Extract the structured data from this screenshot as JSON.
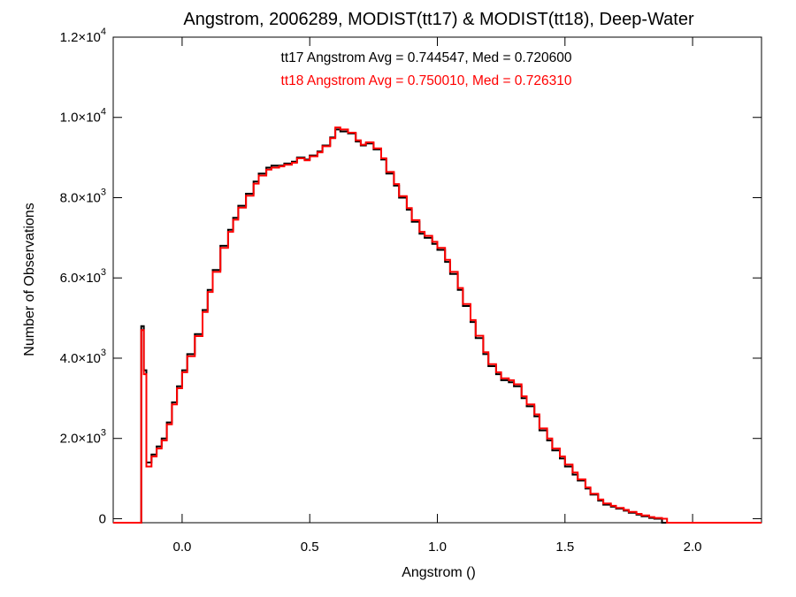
{
  "chart_data": {
    "type": "line",
    "title": "Angstrom, 2006289, MODIST(tt17) & MODIST(tt18), Deep-Water",
    "xlabel": "Angstrom ()",
    "ylabel": "Number of Observations",
    "xlim": [
      -0.27,
      2.27
    ],
    "ylim": [
      -100,
      12000
    ],
    "x_ticks": [
      {
        "value": 0.0,
        "label": "0.0"
      },
      {
        "value": 0.5,
        "label": "0.5"
      },
      {
        "value": 1.0,
        "label": "1.0"
      },
      {
        "value": 1.5,
        "label": "1.5"
      },
      {
        "value": 2.0,
        "label": "2.0"
      }
    ],
    "y_ticks": [
      {
        "value": 0,
        "mantissa": "0",
        "exp": ""
      },
      {
        "value": 2000,
        "mantissa": "2.0×10",
        "exp": "3"
      },
      {
        "value": 4000,
        "mantissa": "4.0×10",
        "exp": "3"
      },
      {
        "value": 6000,
        "mantissa": "6.0×10",
        "exp": "3"
      },
      {
        "value": 8000,
        "mantissa": "8.0×10",
        "exp": "3"
      },
      {
        "value": 10000,
        "mantissa": "1.0×10",
        "exp": "4"
      },
      {
        "value": 12000,
        "mantissa": "1.2×10",
        "exp": "4"
      }
    ],
    "grid": false,
    "step": "histogram",
    "annotations": [
      {
        "text": "tt17 Angstrom Avg = 0.744547, Med = 0.720600",
        "color": "#000000"
      },
      {
        "text": "tt18 Angstrom Avg = 0.750010, Med = 0.726310",
        "color": "#ff0000"
      }
    ],
    "series": [
      {
        "color": "#000000",
        "x": [
          -0.27,
          -0.16,
          -0.15,
          -0.14,
          -0.12,
          -0.1,
          -0.08,
          -0.06,
          -0.04,
          -0.02,
          0.0,
          0.02,
          0.05,
          0.08,
          0.1,
          0.12,
          0.15,
          0.18,
          0.2,
          0.22,
          0.25,
          0.28,
          0.3,
          0.33,
          0.35,
          0.38,
          0.4,
          0.43,
          0.45,
          0.48,
          0.5,
          0.53,
          0.55,
          0.58,
          0.6,
          0.62,
          0.65,
          0.68,
          0.7,
          0.72,
          0.75,
          0.78,
          0.8,
          0.83,
          0.85,
          0.88,
          0.9,
          0.93,
          0.95,
          0.98,
          1.0,
          1.03,
          1.05,
          1.08,
          1.1,
          1.13,
          1.15,
          1.18,
          1.2,
          1.23,
          1.25,
          1.28,
          1.3,
          1.33,
          1.35,
          1.38,
          1.4,
          1.43,
          1.45,
          1.48,
          1.5,
          1.53,
          1.55,
          1.58,
          1.6,
          1.63,
          1.65,
          1.68,
          1.7,
          1.73,
          1.75,
          1.78,
          1.8,
          1.83,
          1.85,
          1.88,
          1.9,
          1.95,
          2.0,
          2.05,
          2.1,
          2.13,
          2.15,
          2.27
        ],
        "y": [
          -100,
          4800,
          3700,
          1400,
          1600,
          1800,
          2000,
          2400,
          2900,
          3300,
          3700,
          4100,
          4600,
          5200,
          5700,
          6200,
          6800,
          7200,
          7500,
          7800,
          8100,
          8400,
          8600,
          8750,
          8800,
          8800,
          8850,
          8900,
          9000,
          8950,
          9050,
          9150,
          9300,
          9500,
          9700,
          9650,
          9600,
          9400,
          9300,
          9350,
          9200,
          8950,
          8600,
          8300,
          8000,
          7700,
          7400,
          7100,
          7000,
          6850,
          6700,
          6400,
          6100,
          5700,
          5300,
          4900,
          4500,
          4100,
          3800,
          3600,
          3450,
          3400,
          3300,
          3000,
          2800,
          2550,
          2200,
          1950,
          1700,
          1500,
          1300,
          1100,
          950,
          750,
          600,
          450,
          350,
          300,
          250,
          200,
          150,
          100,
          60,
          20,
          0,
          -100,
          -100,
          -100,
          -100,
          -100,
          -100,
          -100,
          -100,
          -100
        ]
      },
      {
        "color": "#ff0000",
        "x": [
          -0.27,
          -0.16,
          -0.15,
          -0.14,
          -0.12,
          -0.1,
          -0.08,
          -0.06,
          -0.04,
          -0.02,
          0.0,
          0.02,
          0.05,
          0.08,
          0.1,
          0.12,
          0.15,
          0.18,
          0.2,
          0.22,
          0.25,
          0.28,
          0.3,
          0.33,
          0.35,
          0.38,
          0.4,
          0.43,
          0.45,
          0.48,
          0.5,
          0.53,
          0.55,
          0.58,
          0.6,
          0.62,
          0.65,
          0.68,
          0.7,
          0.72,
          0.75,
          0.78,
          0.8,
          0.83,
          0.85,
          0.88,
          0.9,
          0.93,
          0.95,
          0.98,
          1.0,
          1.03,
          1.05,
          1.08,
          1.1,
          1.13,
          1.15,
          1.18,
          1.2,
          1.23,
          1.25,
          1.28,
          1.3,
          1.33,
          1.35,
          1.38,
          1.4,
          1.43,
          1.45,
          1.48,
          1.5,
          1.53,
          1.55,
          1.58,
          1.6,
          1.63,
          1.65,
          1.68,
          1.7,
          1.73,
          1.75,
          1.78,
          1.8,
          1.83,
          1.85,
          1.88,
          1.9,
          1.95,
          2.0,
          2.05,
          2.1,
          2.13,
          2.15,
          2.27
        ],
        "y": [
          -100,
          4700,
          3600,
          1300,
          1550,
          1750,
          1950,
          2350,
          2850,
          3250,
          3650,
          4050,
          4550,
          5150,
          5650,
          6150,
          6750,
          7150,
          7450,
          7750,
          8050,
          8350,
          8550,
          8700,
          8750,
          8780,
          8820,
          8870,
          8980,
          8930,
          9030,
          9130,
          9280,
          9480,
          9750,
          9700,
          9620,
          9430,
          9320,
          9380,
          9230,
          8980,
          8640,
          8340,
          8040,
          7740,
          7440,
          7150,
          7050,
          6900,
          6750,
          6450,
          6150,
          5750,
          5350,
          4950,
          4560,
          4150,
          3850,
          3650,
          3500,
          3450,
          3350,
          3050,
          2850,
          2600,
          2250,
          2000,
          1750,
          1550,
          1350,
          1150,
          980,
          780,
          620,
          480,
          380,
          320,
          270,
          220,
          170,
          120,
          80,
          40,
          20,
          0,
          -100,
          -100,
          -100,
          -100,
          -100,
          -100,
          -100,
          -100
        ]
      }
    ]
  }
}
